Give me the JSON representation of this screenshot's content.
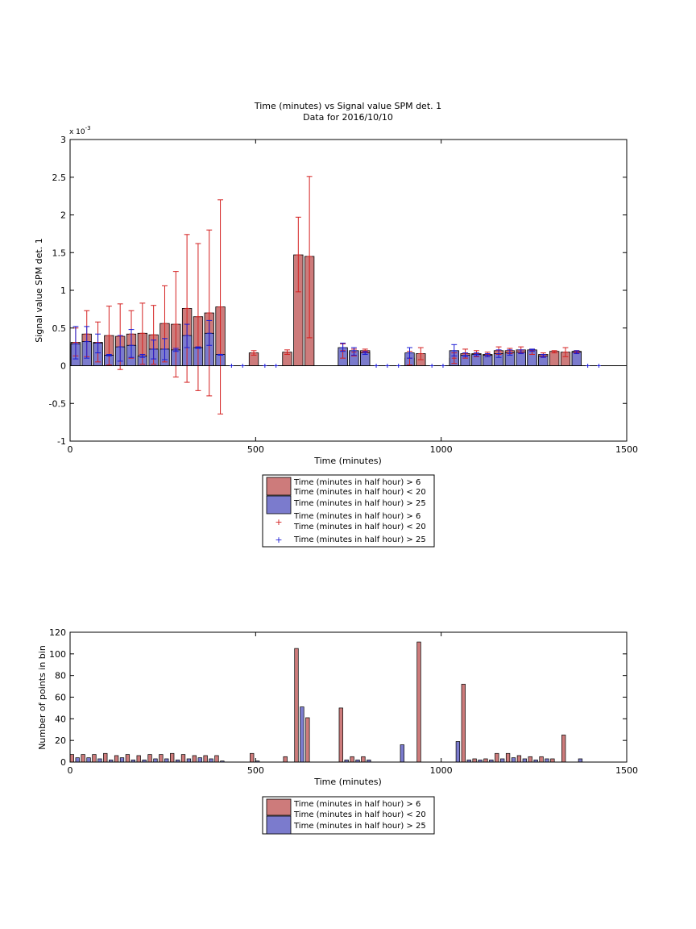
{
  "chart_data": [
    {
      "type": "bar",
      "title": "Time (minutes) vs Signal value SPM det. 1",
      "subtitle": "Data for 2016/10/10",
      "xlabel": "Time (minutes)",
      "ylabel": "Signal value SPM det. 1",
      "y_exponent_label": "x 10",
      "y_exponent": "-3",
      "xlim": [
        0,
        1500
      ],
      "ylim": [
        -1,
        3
      ],
      "x_ticks": [
        "0",
        "500",
        "1000",
        "1500"
      ],
      "y_ticks": [
        "-1",
        "-0.5",
        "0",
        "0.5",
        "1",
        "1.5",
        "2",
        "2.5",
        "3"
      ],
      "grid": false,
      "legend_position": "below",
      "legend": [
        "Time (minutes in half hour) > 6",
        "Time (minutes in half hour) < 20",
        "Time (minutes in half hour) > 25",
        "Time (minutes in half hour) > 6",
        "Time (minutes in half hour) < 20",
        "Time (minutes in half hour) > 25"
      ],
      "colors": {
        "series1": "#cd7b7b",
        "series2": "#7b7bcd",
        "err1": "#d42020",
        "err2": "#1a1ad4"
      },
      "series": [
        {
          "x": [
            15,
            45,
            75,
            105,
            135,
            165,
            195,
            225,
            255,
            285,
            315,
            345,
            375,
            405,
            495,
            585,
            615,
            645,
            735,
            765,
            795,
            915,
            945,
            1035,
            1065,
            1095,
            1125,
            1155,
            1185,
            1215,
            1245,
            1275,
            1305,
            1335,
            1365
          ],
          "values": [
            0.31,
            0.42,
            0.31,
            0.4,
            0.39,
            0.42,
            0.43,
            0.41,
            0.56,
            0.55,
            0.76,
            0.65,
            0.7,
            0.78,
            0.17,
            0.18,
            1.47,
            1.45,
            0.2,
            0.18,
            0.2,
            0.1,
            0.16,
            0.1,
            0.16,
            0.16,
            0.15,
            0.2,
            0.2,
            0.21,
            0.2,
            0.15,
            0.19,
            0.18,
            0.19
          ],
          "err_low": [
            0.13,
            0.12,
            0.05,
            0.01,
            -0.05,
            0.1,
            0.02,
            0.02,
            0.05,
            -0.15,
            -0.22,
            -0.33,
            -0.4,
            -0.64,
            0.14,
            0.15,
            0.98,
            0.37,
            0.1,
            0.13,
            0.18,
            0.01,
            0.08,
            0.03,
            0.1,
            0.12,
            0.12,
            0.15,
            0.16,
            0.17,
            0.15,
            0.12,
            0.17,
            0.12,
            0.17
          ],
          "err_high": [
            0.5,
            0.73,
            0.58,
            0.79,
            0.82,
            0.73,
            0.83,
            0.8,
            1.06,
            1.25,
            1.74,
            1.62,
            1.8,
            2.2,
            0.2,
            0.21,
            1.97,
            2.51,
            0.29,
            0.22,
            0.22,
            0.19,
            0.24,
            0.17,
            0.22,
            0.2,
            0.18,
            0.25,
            0.23,
            0.25,
            0.22,
            0.17,
            0.2,
            0.24,
            0.2
          ]
        },
        {
          "x": [
            15,
            45,
            75,
            105,
            135,
            165,
            195,
            225,
            255,
            285,
            315,
            345,
            375,
            405,
            735,
            765,
            795,
            915,
            1035,
            1065,
            1095,
            1125,
            1155,
            1185,
            1215,
            1245,
            1275,
            1365
          ],
          "values": [
            0.29,
            0.32,
            0.3,
            0.14,
            0.25,
            0.27,
            0.13,
            0.22,
            0.22,
            0.21,
            0.4,
            0.24,
            0.43,
            0.15,
            0.24,
            0.2,
            0.17,
            0.17,
            0.2,
            0.14,
            0.15,
            0.14,
            0.16,
            0.17,
            0.18,
            0.21,
            0.13,
            0.18
          ],
          "err_low": [
            0.09,
            0.1,
            0.17,
            0.13,
            0.06,
            0.11,
            0.11,
            0.09,
            0.08,
            0.19,
            0.24,
            0.23,
            0.27,
            0.14,
            0.19,
            0.14,
            0.15,
            0.1,
            0.13,
            0.12,
            0.13,
            0.12,
            0.11,
            0.14,
            0.16,
            0.19,
            0.11,
            0.16
          ],
          "err_high": [
            0.52,
            0.52,
            0.42,
            0.15,
            0.4,
            0.48,
            0.15,
            0.34,
            0.36,
            0.23,
            0.55,
            0.25,
            0.6,
            0.15,
            0.3,
            0.24,
            0.19,
            0.24,
            0.28,
            0.17,
            0.17,
            0.16,
            0.21,
            0.21,
            0.21,
            0.22,
            0.15,
            0.2
          ]
        },
        {
          "x": [
            435,
            465,
            525,
            555,
            825,
            855,
            885,
            975,
            1005,
            1395,
            1425
          ],
          "values": [
            0,
            0,
            0,
            0,
            0,
            0,
            0,
            0,
            0,
            0,
            0
          ]
        }
      ]
    },
    {
      "type": "bar",
      "xlabel": "Time (minutes)",
      "ylabel": "Number of points in bin",
      "xlim": [
        0,
        1500
      ],
      "ylim": [
        0,
        120
      ],
      "x_ticks": [
        "0",
        "500",
        "1000",
        "1500"
      ],
      "y_ticks": [
        "0",
        "20",
        "40",
        "60",
        "80",
        "100",
        "120"
      ],
      "grid": false,
      "legend_position": "below",
      "legend": [
        "Time (minutes in half hour) > 6",
        "Time (minutes in half hour) < 20",
        "Time (minutes in half hour) > 25"
      ],
      "colors": {
        "series1": "#cd7b7b",
        "series2": "#7b7bcd"
      },
      "series": [
        {
          "x": [
            5,
            35,
            65,
            95,
            125,
            155,
            185,
            215,
            245,
            275,
            305,
            335,
            365,
            395,
            490,
            580,
            610,
            640,
            730,
            760,
            790,
            940,
            1060,
            1090,
            1120,
            1150,
            1180,
            1210,
            1240,
            1270,
            1300,
            1330
          ],
          "values": [
            7,
            7,
            7,
            8,
            6,
            7,
            6,
            7,
            7,
            8,
            7,
            6,
            6,
            6,
            8,
            5,
            105,
            41,
            50,
            5,
            5,
            111,
            72,
            3,
            3,
            8,
            8,
            6,
            5,
            5,
            3,
            25
          ]
        },
        {
          "x": [
            20,
            50,
            80,
            110,
            140,
            170,
            200,
            230,
            260,
            290,
            320,
            350,
            380,
            410,
            505,
            625,
            745,
            775,
            805,
            895,
            1045,
            1075,
            1105,
            1135,
            1165,
            1195,
            1225,
            1255,
            1285,
            1375
          ],
          "values": [
            4,
            4,
            3,
            2,
            4,
            2,
            2,
            3,
            3,
            2,
            3,
            4,
            3,
            1,
            1,
            51,
            2,
            2,
            2,
            16,
            19,
            2,
            2,
            2,
            3,
            4,
            3,
            2,
            3,
            3
          ]
        }
      ]
    }
  ]
}
